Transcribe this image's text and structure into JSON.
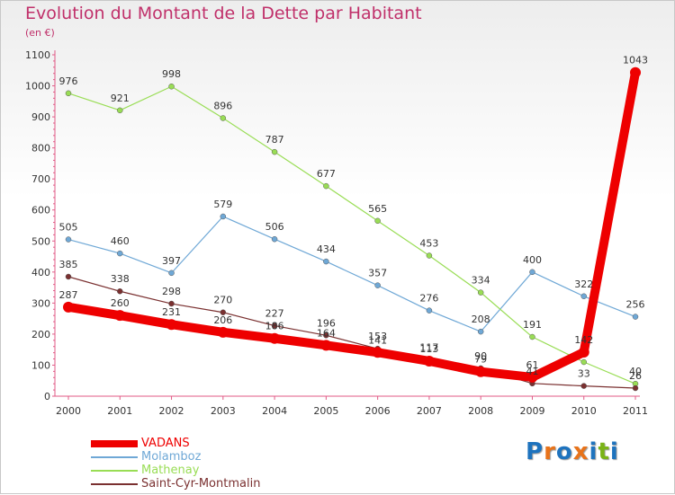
{
  "header": {
    "title": "Evolution du Montant de la Dette par Habitant",
    "subtitle": "(en €)"
  },
  "brand": {
    "letters": [
      "P",
      "r",
      "o",
      "x",
      "i",
      "t",
      "i"
    ],
    "colors": [
      "#1e73be",
      "#e8731a",
      "#1e73be",
      "#e8731a",
      "#1e73be",
      "#7ab317",
      "#1e73be"
    ]
  },
  "chart_data": {
    "type": "line",
    "title": "Evolution du Montant de la Dette par Habitant",
    "subtitle": "(en €)",
    "xlabel": "",
    "ylabel": "",
    "categories": [
      "2000",
      "2001",
      "2002",
      "2003",
      "2004",
      "2005",
      "2006",
      "2007",
      "2008",
      "2009",
      "2010",
      "2011"
    ],
    "ylim": [
      0,
      1100
    ],
    "yticks": [
      0,
      100,
      200,
      300,
      400,
      500,
      600,
      700,
      800,
      900,
      1000,
      1100
    ],
    "grid": false,
    "legend_position": "bottom-left",
    "series": [
      {
        "name": "VADANS",
        "color": "#ee0000",
        "values": [
          287,
          260,
          231,
          206,
          186,
          164,
          141,
          113,
          79,
          61,
          142,
          1043
        ],
        "labels": [
          "287",
          "260",
          "231",
          "206",
          "186",
          "164",
          "141",
          "113",
          "79",
          "61",
          "142",
          "1043"
        ]
      },
      {
        "name": "Molamboz",
        "color": "#6fa8d6",
        "values": [
          505,
          460,
          397,
          579,
          506,
          434,
          357,
          276,
          208,
          400,
          322,
          256
        ],
        "labels": [
          "505",
          "460",
          "397",
          "579",
          "506",
          "434",
          "357",
          "276",
          "208",
          "400",
          "322",
          "256"
        ]
      },
      {
        "name": "Mathenay",
        "color": "#99dd55",
        "values": [
          976,
          921,
          998,
          896,
          787,
          677,
          565,
          453,
          334,
          191,
          110,
          40
        ],
        "labels": [
          "976",
          "921",
          "998",
          "896",
          "787",
          "677",
          "565",
          "453",
          "334",
          "191",
          "",
          "40"
        ]
      },
      {
        "name": "Saint-Cyr-Montmalin",
        "color": "#7a3030",
        "values": [
          385,
          338,
          298,
          270,
          227,
          196,
          153,
          117,
          90,
          41,
          33,
          26
        ],
        "labels": [
          "385",
          "338",
          "298",
          "270",
          "227",
          "196",
          "153",
          "117",
          "90",
          "41",
          "33",
          "26"
        ]
      }
    ]
  }
}
